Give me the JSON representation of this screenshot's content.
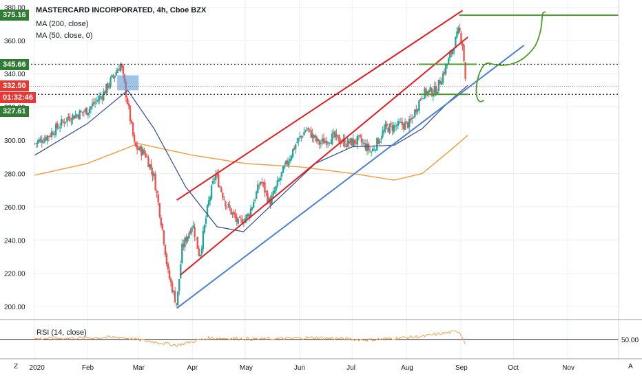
{
  "header": {
    "title": "MASTERCARD INCORPORATED, 4h, Cboe BZX",
    "ma200_label": "MA (200, close)",
    "ma50_label": "MA (50, close, 0)"
  },
  "rsi": {
    "label": "RSI (14, close)",
    "level": "50.00"
  },
  "axis_badges": {
    "level_1": "375.16",
    "level_2": "345.66",
    "last_price": "332.50",
    "countdown": "01:32:46",
    "level_3": "327.61"
  },
  "corner": {
    "left": "Z",
    "right": "A"
  },
  "colors": {
    "candle_up": "#26a69a",
    "candle_down": "#ef5350",
    "ma200": "#f0a04b",
    "ma50": "#2f4b8a",
    "channel": "#e31b23",
    "trendline": "#4a80d0",
    "levels": "#4c9a2a",
    "rsi": "#f0a04b",
    "badge_green": "#2e7d32",
    "badge_red": "#e53935"
  },
  "chart_data": {
    "type": "candlestick",
    "title": "MASTERCARD INCORPORATED, 4h, Cboe BZX",
    "x_ticks": [
      "2020",
      "Feb",
      "Mar",
      "Apr",
      "May",
      "Jun",
      "Jul",
      "Aug",
      "Sep",
      "Oct",
      "Nov"
    ],
    "y_ticks": [
      "200.00",
      "220.00",
      "240.00",
      "260.00",
      "280.00",
      "300.00",
      "320.00",
      "340.00",
      "360.00",
      "380.00"
    ],
    "ylim": [
      193,
      381
    ],
    "price_path": [
      {
        "date": "2020-01-02",
        "close": 298
      },
      {
        "date": "2020-01-10",
        "close": 303
      },
      {
        "date": "2020-01-20",
        "close": 313
      },
      {
        "date": "2020-02-01",
        "close": 318
      },
      {
        "date": "2020-02-10",
        "close": 328
      },
      {
        "date": "2020-02-20",
        "close": 346
      },
      {
        "date": "2020-02-24",
        "close": 322
      },
      {
        "date": "2020-02-28",
        "close": 296
      },
      {
        "date": "2020-03-05",
        "close": 292
      },
      {
        "date": "2020-03-10",
        "close": 278
      },
      {
        "date": "2020-03-15",
        "close": 245
      },
      {
        "date": "2020-03-18",
        "close": 220
      },
      {
        "date": "2020-03-23",
        "close": 201
      },
      {
        "date": "2020-03-26",
        "close": 235
      },
      {
        "date": "2020-04-01",
        "close": 250
      },
      {
        "date": "2020-04-05",
        "close": 230
      },
      {
        "date": "2020-04-10",
        "close": 262
      },
      {
        "date": "2020-04-14",
        "close": 280
      },
      {
        "date": "2020-04-20",
        "close": 262
      },
      {
        "date": "2020-04-27",
        "close": 250
      },
      {
        "date": "2020-05-03",
        "close": 255
      },
      {
        "date": "2020-05-10",
        "close": 276
      },
      {
        "date": "2020-05-15",
        "close": 262
      },
      {
        "date": "2020-05-22",
        "close": 280
      },
      {
        "date": "2020-05-30",
        "close": 298
      },
      {
        "date": "2020-06-05",
        "close": 307
      },
      {
        "date": "2020-06-12",
        "close": 298
      },
      {
        "date": "2020-06-20",
        "close": 302
      },
      {
        "date": "2020-06-28",
        "close": 298
      },
      {
        "date": "2020-07-05",
        "close": 300
      },
      {
        "date": "2020-07-12",
        "close": 293
      },
      {
        "date": "2020-07-20",
        "close": 307
      },
      {
        "date": "2020-07-28",
        "close": 309
      },
      {
        "date": "2020-08-03",
        "close": 310
      },
      {
        "date": "2020-08-10",
        "close": 328
      },
      {
        "date": "2020-08-18",
        "close": 330
      },
      {
        "date": "2020-08-25",
        "close": 348
      },
      {
        "date": "2020-08-31",
        "close": 366
      },
      {
        "date": "2020-09-02",
        "close": 358
      },
      {
        "date": "2020-09-04",
        "close": 333
      }
    ],
    "ma200": [
      {
        "date": "2020-01-02",
        "value": 279
      },
      {
        "date": "2020-02-01",
        "value": 286
      },
      {
        "date": "2020-03-01",
        "value": 298
      },
      {
        "date": "2020-04-01",
        "value": 291
      },
      {
        "date": "2020-05-01",
        "value": 286
      },
      {
        "date": "2020-06-01",
        "value": 284
      },
      {
        "date": "2020-07-01",
        "value": 280
      },
      {
        "date": "2020-07-25",
        "value": 276
      },
      {
        "date": "2020-08-10",
        "value": 280
      },
      {
        "date": "2020-08-25",
        "value": 293
      },
      {
        "date": "2020-09-05",
        "value": 303
      }
    ],
    "ma50": [
      {
        "date": "2020-01-02",
        "value": 291
      },
      {
        "date": "2020-02-01",
        "value": 310
      },
      {
        "date": "2020-02-24",
        "value": 330
      },
      {
        "date": "2020-03-10",
        "value": 307
      },
      {
        "date": "2020-03-28",
        "value": 272
      },
      {
        "date": "2020-04-15",
        "value": 248
      },
      {
        "date": "2020-04-30",
        "value": 245
      },
      {
        "date": "2020-05-20",
        "value": 265
      },
      {
        "date": "2020-06-10",
        "value": 286
      },
      {
        "date": "2020-07-01",
        "value": 296
      },
      {
        "date": "2020-07-25",
        "value": 297
      },
      {
        "date": "2020-08-10",
        "value": 307
      },
      {
        "date": "2020-08-25",
        "value": 323
      },
      {
        "date": "2020-09-05",
        "value": 333
      }
    ],
    "rsi_path": [
      {
        "date": "2020-01-02",
        "value": 52
      },
      {
        "date": "2020-02-20",
        "value": 56
      },
      {
        "date": "2020-03-10",
        "value": 44
      },
      {
        "date": "2020-03-23",
        "value": 35
      },
      {
        "date": "2020-04-10",
        "value": 54
      },
      {
        "date": "2020-05-10",
        "value": 51
      },
      {
        "date": "2020-06-10",
        "value": 55
      },
      {
        "date": "2020-07-10",
        "value": 49
      },
      {
        "date": "2020-08-10",
        "value": 58
      },
      {
        "date": "2020-08-31",
        "value": 72
      },
      {
        "date": "2020-09-04",
        "value": 38
      }
    ],
    "drawings": {
      "channel_upper": [
        {
          "date": "2020-03-23",
          "value": 264
        },
        {
          "date": "2020-09-02",
          "value": 378
        }
      ],
      "channel_lower": [
        {
          "date": "2020-03-25",
          "value": 219
        },
        {
          "date": "2020-09-05",
          "value": 362
        }
      ],
      "ascending_trendline": [
        {
          "date": "2020-03-23",
          "value": 199
        },
        {
          "date": "2020-10-07",
          "value": 357
        }
      ],
      "resistance_level": 375.16,
      "support_level_upper": 345.66,
      "support_level_lower": 327.61
    }
  }
}
